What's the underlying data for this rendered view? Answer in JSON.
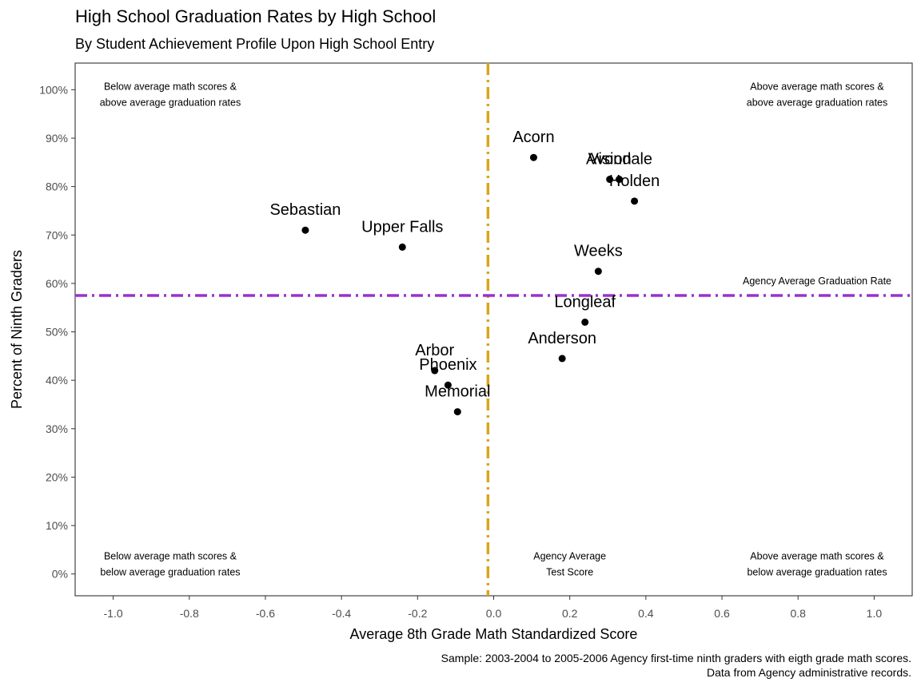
{
  "title": "High School Graduation Rates by High School",
  "subtitle": "By Student Achievement Profile Upon High School Entry",
  "caption": [
    "Sample: 2003-2004 to 2005-2006 Agency first-time ninth graders with eigth grade math scores.",
    "Data from Agency administrative records."
  ],
  "chart_data": {
    "type": "scatter",
    "xlabel": "Average 8th Grade Math Standardized Score",
    "ylabel": "Percent of Ninth Graders",
    "xlim": [
      -1.1,
      1.1
    ],
    "ylim": [
      -0.045,
      1.055
    ],
    "x_ticks": [
      -1.0,
      -0.8,
      -0.6,
      -0.4,
      -0.2,
      0.0,
      0.2,
      0.4,
      0.6,
      0.8,
      1.0
    ],
    "x_tick_labels": [
      "-1.0",
      "-0.8",
      "-0.6",
      "-0.4",
      "-0.2",
      "0.0",
      "0.2",
      "0.4",
      "0.6",
      "0.8",
      "1.0"
    ],
    "y_ticks": [
      0,
      0.1,
      0.2,
      0.3,
      0.4,
      0.5,
      0.6,
      0.7,
      0.8,
      0.9,
      1.0
    ],
    "y_tick_labels": [
      "0%",
      "10%",
      "20%",
      "30%",
      "40%",
      "50%",
      "60%",
      "70%",
      "80%",
      "90%",
      "100%"
    ],
    "grid": false,
    "points": [
      {
        "label": "Acorn",
        "x": 0.105,
        "y": 0.86
      },
      {
        "label": "Vision",
        "x": 0.305,
        "y": 0.815
      },
      {
        "label": "Avondale",
        "x": 0.33,
        "y": 0.815
      },
      {
        "label": "Holden",
        "x": 0.37,
        "y": 0.77
      },
      {
        "label": "Sebastian",
        "x": -0.495,
        "y": 0.71
      },
      {
        "label": "Upper Falls",
        "x": -0.24,
        "y": 0.675
      },
      {
        "label": "Weeks",
        "x": 0.275,
        "y": 0.625
      },
      {
        "label": "Longleaf",
        "x": 0.24,
        "y": 0.52
      },
      {
        "label": "Anderson",
        "x": 0.18,
        "y": 0.445
      },
      {
        "label": "Arbor",
        "x": -0.155,
        "y": 0.42
      },
      {
        "label": "Phoenix",
        "x": -0.12,
        "y": 0.39
      },
      {
        "label": "Memorial",
        "x": -0.095,
        "y": 0.335
      }
    ],
    "reference_lines": [
      {
        "orientation": "vertical",
        "value": -0.015,
        "color": "#DAA520",
        "style": "dash-dot"
      },
      {
        "orientation": "horizontal",
        "value": 0.575,
        "color": "#9932CC",
        "style": "dash-dot"
      }
    ],
    "annotations": [
      {
        "text": [
          "Below average math scores &",
          "above average graduation rates"
        ],
        "x": -0.85,
        "y": 0.99
      },
      {
        "text": [
          "Above average math scores &",
          "above average graduation rates"
        ],
        "x": 0.85,
        "y": 0.99
      },
      {
        "text": [
          "Below average math scores &",
          "below average graduation rates"
        ],
        "x": -0.85,
        "y": 0.02
      },
      {
        "text": [
          "Above average math scores &",
          "below average graduation rates"
        ],
        "x": 0.85,
        "y": 0.02
      },
      {
        "text": [
          "Agency Average",
          "Test Score"
        ],
        "x": 0.2,
        "y": 0.02,
        "color": "#DAA520"
      },
      {
        "text": [
          "Agency Average Graduation Rate"
        ],
        "x": 0.85,
        "y": 0.605
      }
    ]
  }
}
